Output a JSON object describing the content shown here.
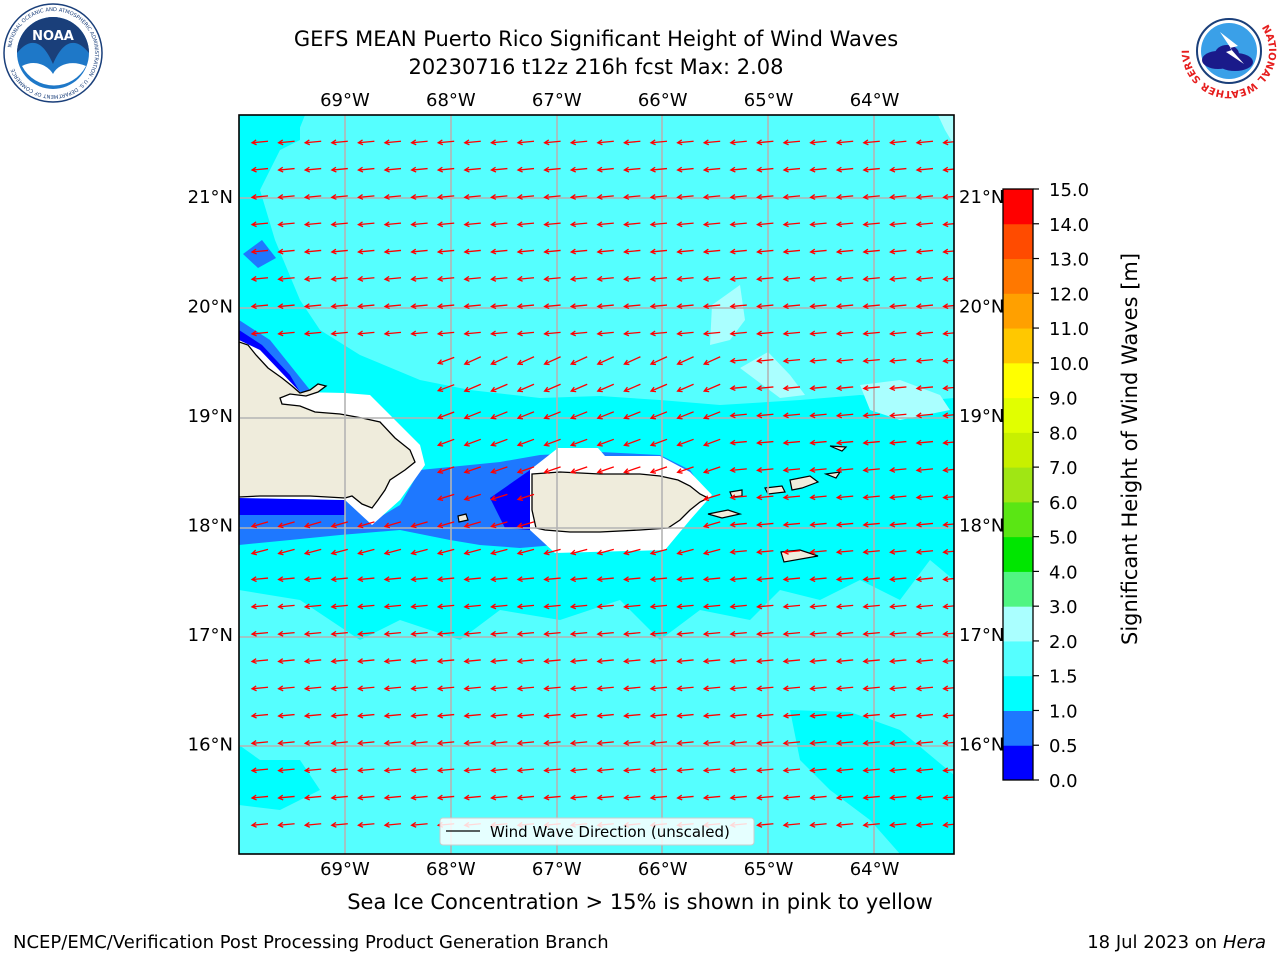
{
  "title_line1": "GEFS MEAN Puerto Rico Significant Height of Wind Waves",
  "title_line2": "20230716 t12z 216h fcst   Max: 2.08",
  "map": {
    "lon_labels": [
      "69°W",
      "68°W",
      "67°W",
      "66°W",
      "65°W",
      "64°W"
    ],
    "lat_labels": [
      "21°N",
      "20°N",
      "19°N",
      "18°N",
      "17°N",
      "16°N"
    ],
    "lon_values": [
      -69,
      -68,
      -67,
      -66,
      -65,
      -64
    ],
    "lat_values": [
      21,
      20,
      19,
      18,
      17,
      16
    ],
    "extent": {
      "lon_min": -70,
      "lon_max": -63.25,
      "lat_min": 15,
      "lat_max": 21.75
    },
    "legend_label": "Wind Wave Direction (unscaled)",
    "arrow_color": "#ff0000",
    "land_color": "#efecdc"
  },
  "colorbar": {
    "title": "Significant Height of Wind Waves [m]",
    "ticks": [
      "0.0",
      "0.5",
      "1.0",
      "1.5",
      "2.0",
      "3.0",
      "4.0",
      "5.0",
      "6.0",
      "7.0",
      "8.0",
      "9.0",
      "10.0",
      "11.0",
      "12.0",
      "13.0",
      "14.0",
      "15.0"
    ],
    "colors": [
      "#0000ff",
      "#1e78ff",
      "#00ffff",
      "#55ffff",
      "#aaffff",
      "#50f582",
      "#00e600",
      "#5ae614",
      "#a0e614",
      "#c8f000",
      "#e1ff00",
      "#ffff00",
      "#ffc800",
      "#ffa000",
      "#ff7800",
      "#ff4b00",
      "#ff0000"
    ]
  },
  "note": "Sea Ice Concentration > 15% is shown in pink to yellow",
  "footer_left": "NCEP/EMC/Verification Post Processing Product Generation Branch",
  "footer_right_prefix": "18 Jul 2023 on ",
  "footer_right_host": "Hera",
  "logos": {
    "noaa": {
      "text": "NOAA",
      "ring": "NATIONAL OCEANIC AND ATMOSPHERIC ADMINISTRATION · U.S. DEPARTMENT OF COMMERCE"
    },
    "nws": {
      "ring": "NATIONAL WEATHER SERVICE"
    }
  }
}
